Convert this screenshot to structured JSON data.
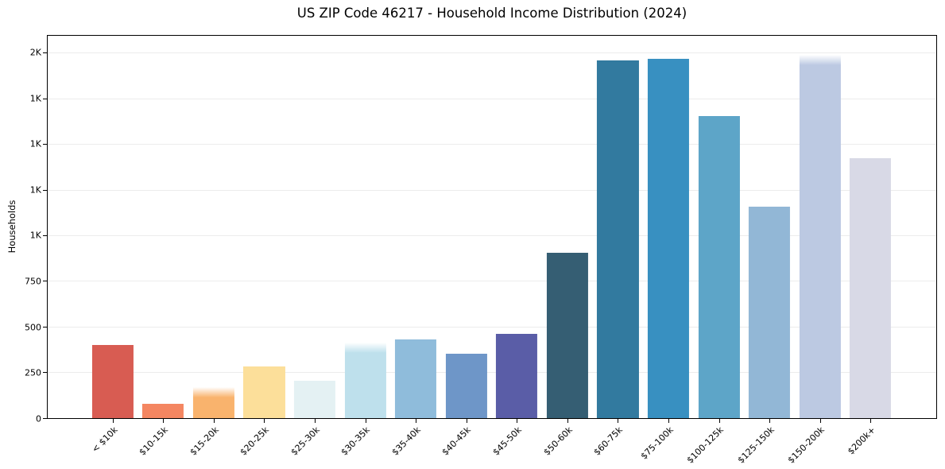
{
  "title": "US ZIP Code 46217 - Household Income Distribution (2024)",
  "chart_data": {
    "type": "bar",
    "title": "US ZIP Code 46217 - Household Income Distribution (2024)",
    "xlabel": "",
    "ylabel": "Households",
    "ylim": [
      0,
      2095
    ],
    "grid": "horizontal-only",
    "legend": "none",
    "categories": [
      "< $10k",
      "$10-15k",
      "$15-20k",
      "$20-25k",
      "$25-30k",
      "$30-35k",
      "$35-40k",
      "$40-45k",
      "$45-50k",
      "$50-60k",
      "$60-75k",
      "$75-100k",
      "$100-125k",
      "$125-150k",
      "$150-200k",
      "$200k+"
    ],
    "values": [
      400,
      80,
      172,
      283,
      205,
      413,
      433,
      352,
      460,
      905,
      1960,
      1968,
      1657,
      1158,
      1990,
      1426
    ],
    "bar_colors": [
      "#d85c52",
      "#f48661",
      "#f9b36d",
      "#fcdf9a",
      "#e4f1f3",
      "#bee0ec",
      "#8fbcdb",
      "#6e96c8",
      "#5a5da7",
      "#355e73",
      "#327a9f",
      "#3890c1",
      "#5da5c8",
      "#92b7d6",
      "#bcc9e2",
      "#d8d9e6"
    ],
    "soft_top_bar_indexes": [
      2,
      5,
      14
    ],
    "yticks": [
      {
        "value": 0,
        "label": "0"
      },
      {
        "value": 250,
        "label": "250"
      },
      {
        "value": 500,
        "label": "500"
      },
      {
        "value": 750,
        "label": "750"
      },
      {
        "value": 1000,
        "label": "1K"
      },
      {
        "value": 1250,
        "label": "1K"
      },
      {
        "value": 1500,
        "label": "1K"
      },
      {
        "value": 1750,
        "label": "1K"
      },
      {
        "value": 2000,
        "label": "2K"
      }
    ]
  },
  "style": {
    "background_color": "#ffffff",
    "grid_color": "#ececec",
    "spine_color": "#000000",
    "text_color": "#000000"
  }
}
